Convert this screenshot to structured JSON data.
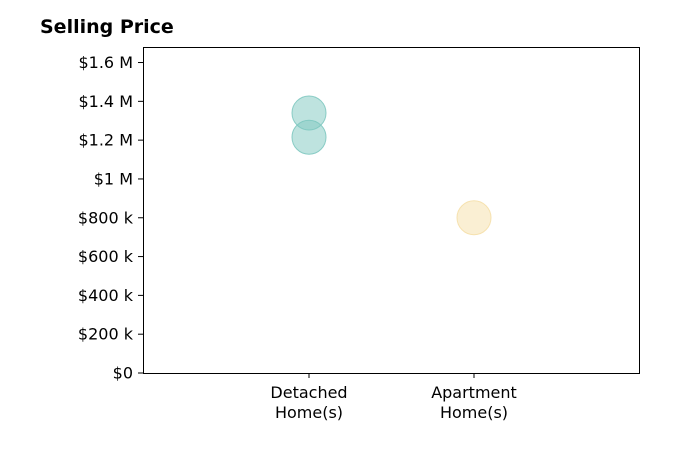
{
  "chart_data": {
    "type": "scatter",
    "title": "Selling Price",
    "xlabel": "",
    "ylabel": "",
    "categories": [
      [
        "Detached",
        "Home(s)"
      ],
      [
        "Apartment",
        "Home(s)"
      ]
    ],
    "ylim": [
      0,
      1680000
    ],
    "yticks": [
      0,
      200000,
      400000,
      600000,
      800000,
      1000000,
      1200000,
      1400000,
      1600000
    ],
    "ytick_labels": [
      "$0",
      "$200 k",
      "$400 k",
      "$600 k",
      "$800 k",
      "$1 M",
      "$1.2 M",
      "$1.4 M",
      "$1.6 M"
    ],
    "grid": false,
    "series": [
      {
        "color": "#7ec8c0",
        "points": [
          {
            "category": 0,
            "value": 1340000
          },
          {
            "category": 0,
            "value": 1215000
          }
        ]
      },
      {
        "color": "#f5dfa8",
        "points": [
          {
            "category": 1,
            "value": 800000
          }
        ]
      }
    ]
  }
}
